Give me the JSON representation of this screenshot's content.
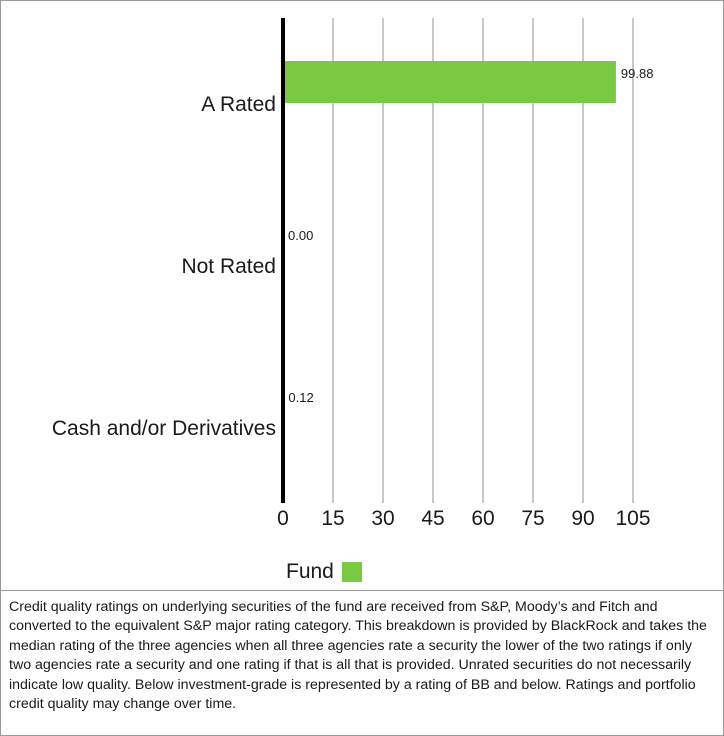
{
  "chart_data": {
    "type": "bar",
    "orientation": "horizontal",
    "categories": [
      "A Rated",
      "Not Rated",
      "Cash and/or Derivatives"
    ],
    "series": [
      {
        "name": "Fund",
        "values": [
          99.88,
          0.0,
          0.12
        ],
        "value_labels": [
          "99.88",
          "0.00",
          "0.12"
        ]
      }
    ],
    "xlim": [
      0,
      105
    ],
    "x_ticks": [
      0,
      15,
      30,
      45,
      60,
      75,
      90,
      105
    ],
    "grid": true,
    "legend_placement": "bottom",
    "colors": {
      "bar": "#7ac943",
      "axis": "#000000",
      "grid": "#c8c8c8"
    }
  },
  "legend": {
    "label": "Fund",
    "color": "#7ac943"
  },
  "footnote": "Credit quality ratings on underlying securities of the fund are received from S&P, Moody’s and Fitch and converted to the equivalent S&P major rating category. This breakdown is provided by BlackRock and takes the median rating of the three agencies when all three agencies rate a security the lower of the two ratings if only two agencies rate a security and one rating if that is all that is provided. Unrated securities do not necessarily indicate low quality. Below investment-grade is represented by a rating of BB and below. Ratings and portfolio credit quality may change over time."
}
